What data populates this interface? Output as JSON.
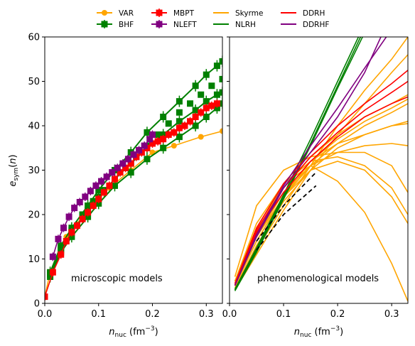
{
  "legend": [
    {
      "label": "VAR",
      "color": "#ffa500",
      "marker": "circle"
    },
    {
      "label": "BHF",
      "color": "#008000",
      "marker": "square"
    },
    {
      "label": "MBPT",
      "color": "#ff0000",
      "marker": "square"
    },
    {
      "label": "NLEFT",
      "color": "#800080",
      "marker": "square"
    },
    {
      "label": "Skyrme",
      "color": "#ffa500",
      "marker": "none"
    },
    {
      "label": "NLRH",
      "color": "#008000",
      "marker": "none"
    },
    {
      "label": "DDRH",
      "color": "#ff0000",
      "marker": "none"
    },
    {
      "label": "DDRHF",
      "color": "#800080",
      "marker": "none"
    }
  ],
  "chart_data": [
    {
      "type": "line",
      "panel": "left",
      "annotation": "microscopic models",
      "xlabel": "n_nuc (fm^-3)",
      "ylabel": "e_sym(n)",
      "xlim": [
        0,
        0.33
      ],
      "ylim": [
        0,
        60
      ],
      "xticks": [
        0.0,
        0.1,
        0.2,
        0.3
      ],
      "yticks": [
        0,
        10,
        20,
        30,
        40,
        50,
        60
      ],
      "series": [
        {
          "name": "VAR",
          "color": "#ffa500",
          "marker": "circle",
          "x": [
            0.0,
            0.01,
            0.04,
            0.08,
            0.12,
            0.16,
            0.2,
            0.24,
            0.29,
            0.33
          ],
          "y": [
            1.5,
            7,
            15,
            21,
            26,
            30,
            34,
            35.5,
            37.5,
            38.8
          ]
        },
        {
          "name": "BHF",
          "color": "#008000",
          "marker": "square",
          "bands": [
            {
              "x": [
                0.01,
                0.03,
                0.05,
                0.08,
                0.1,
                0.13,
                0.16,
                0.19,
                0.22,
                0.25,
                0.28,
                0.3,
                0.32,
                0.33
              ],
              "y": [
                6.5,
                12,
                16,
                21,
                24,
                28,
                31.5,
                35,
                38,
                41,
                43.5,
                45.5,
                47,
                47.5
              ]
            },
            {
              "x": [
                0.01,
                0.03,
                0.05,
                0.08,
                0.1,
                0.13,
                0.16,
                0.19,
                0.22,
                0.25,
                0.28,
                0.3,
                0.32,
                0.33
              ],
              "y": [
                7,
                13,
                17,
                22,
                25.5,
                30,
                34,
                38.5,
                42,
                45.5,
                49,
                51.5,
                53.5,
                54.5
              ]
            },
            {
              "x": [
                0.01,
                0.03,
                0.05,
                0.08,
                0.1,
                0.13,
                0.16,
                0.19,
                0.22,
                0.25,
                0.28,
                0.3,
                0.32,
                0.33
              ],
              "y": [
                6,
                11.5,
                15,
                19.5,
                22.5,
                26.5,
                29.5,
                32.5,
                35,
                37.5,
                40,
                42,
                44,
                45
              ]
            }
          ],
          "values_x": [
            0.01,
            0.03,
            0.05,
            0.07,
            0.09,
            0.11,
            0.13,
            0.15,
            0.17,
            0.19,
            0.21,
            0.23,
            0.25,
            0.27,
            0.29,
            0.31,
            0.33
          ],
          "values_y": [
            6.8,
            12.5,
            16.5,
            20,
            23,
            25.5,
            28,
            30.5,
            33,
            35.5,
            38,
            40.5,
            43,
            45,
            47,
            49,
            50.5
          ]
        },
        {
          "name": "MBPT",
          "color": "#ff0000",
          "marker": "square",
          "x": [
            0.0,
            0.015,
            0.03,
            0.04,
            0.05,
            0.06,
            0.07,
            0.08,
            0.09,
            0.1,
            0.11,
            0.12,
            0.13,
            0.14,
            0.15,
            0.16,
            0.17,
            0.18,
            0.19,
            0.2,
            0.21,
            0.22,
            0.23,
            0.24,
            0.25,
            0.26,
            0.27,
            0.28,
            0.29,
            0.3,
            0.31,
            0.32
          ],
          "y": [
            1.5,
            7,
            11,
            14,
            16,
            17.5,
            19,
            20.5,
            22,
            23.5,
            25,
            26.5,
            28,
            29.5,
            30.5,
            31.5,
            33,
            34,
            35,
            36,
            36.5,
            37,
            38,
            38.5,
            39.5,
            40,
            41,
            42,
            43,
            44,
            44.5,
            45
          ]
        },
        {
          "name": "NLEFT",
          "color": "#800080",
          "marker": "square",
          "x": [
            0.015,
            0.025,
            0.035,
            0.045,
            0.055,
            0.065,
            0.075,
            0.085,
            0.095,
            0.105,
            0.115,
            0.125,
            0.135,
            0.145,
            0.155,
            0.165,
            0.175,
            0.185,
            0.195,
            0.2
          ],
          "y": [
            10.5,
            14.5,
            17,
            19.5,
            21.5,
            22.8,
            24,
            25.3,
            26.5,
            27.5,
            28.5,
            29.5,
            30.5,
            31.5,
            32.5,
            33.5,
            34.5,
            35.5,
            37,
            38
          ]
        }
      ]
    },
    {
      "type": "line",
      "panel": "right",
      "annotation": "phenomenological models",
      "xlabel": "n_nuc (fm^-3)",
      "xlim": [
        0,
        0.33
      ],
      "ylim": [
        0,
        60
      ],
      "xticks": [
        0.0,
        0.1,
        0.2,
        0.3
      ],
      "series": [
        {
          "name": "Skyrme",
          "color": "#ffa500",
          "marker": "none",
          "curves": [
            {
              "x": [
                0.01,
                0.05,
                0.1,
                0.15,
                0.2,
                0.25,
                0.3,
                0.33
              ],
              "y": [
                6,
                22,
                30,
                33,
                34,
                34,
                31,
                25
              ]
            },
            {
              "x": [
                0.01,
                0.05,
                0.1,
                0.15,
                0.2,
                0.25,
                0.3,
                0.33
              ],
              "y": [
                5,
                18,
                27,
                32,
                36,
                38,
                40,
                41
              ]
            },
            {
              "x": [
                0.01,
                0.05,
                0.1,
                0.15,
                0.2,
                0.25,
                0.3,
                0.33
              ],
              "y": [
                4,
                15,
                24,
                31,
                36,
                40,
                43,
                45
              ]
            },
            {
              "x": [
                0.01,
                0.05,
                0.1,
                0.15,
                0.2,
                0.25,
                0.3,
                0.33
              ],
              "y": [
                3,
                12,
                22,
                31,
                40,
                48,
                55,
                60
              ]
            },
            {
              "x": [
                0.01,
                0.05,
                0.1,
                0.15,
                0.2,
                0.25,
                0.3,
                0.33
              ],
              "y": [
                4,
                14,
                24,
                32,
                37,
                41,
                44,
                46
              ]
            },
            {
              "x": [
                0.01,
                0.05,
                0.1,
                0.15,
                0.2,
                0.25,
                0.3,
                0.33
              ],
              "y": [
                5,
                17,
                27,
                32,
                33,
                31,
                26,
                20
              ]
            },
            {
              "x": [
                0.01,
                0.05,
                0.1,
                0.15,
                0.2,
                0.25,
                0.3,
                0.33
              ],
              "y": [
                4,
                14,
                24,
                30,
                32,
                30,
                24,
                18
              ]
            },
            {
              "x": [
                0.01,
                0.05,
                0.1,
                0.15,
                0.2,
                0.25,
                0.3,
                0.33
              ],
              "y": [
                5,
                16,
                27,
                31,
                27.5,
                20.5,
                9,
                0.5
              ]
            },
            {
              "x": [
                0.01,
                0.05,
                0.1,
                0.15,
                0.2,
                0.25,
                0.3,
                0.33
              ],
              "y": [
                4,
                15,
                25,
                31,
                34,
                35.5,
                36,
                35.5
              ]
            },
            {
              "x": [
                0.01,
                0.05,
                0.1,
                0.15,
                0.2,
                0.25,
                0.3,
                0.33
              ],
              "y": [
                3.5,
                13,
                23,
                30,
                35,
                38,
                40,
                40.5
              ]
            },
            {
              "x": [
                0.01,
                0.05,
                0.1,
                0.15,
                0.2,
                0.25,
                0.3,
                0.33
              ],
              "y": [
                4.5,
                15.5,
                26,
                33,
                38,
                42,
                45,
                47
              ]
            },
            {
              "x": [
                0.01,
                0.05,
                0.1,
                0.15,
                0.2,
                0.25,
                0.3,
                0.33
              ],
              "y": [
                3,
                11,
                21,
                30,
                38,
                45,
                52,
                56
              ]
            }
          ]
        },
        {
          "name": "NLRH",
          "color": "#008000",
          "marker": "none",
          "curves": [
            {
              "x": [
                0.01,
                0.05,
                0.1,
                0.15,
                0.2,
                0.25
              ],
              "y": [
                3,
                12,
                24,
                36,
                49,
                62
              ]
            },
            {
              "x": [
                0.01,
                0.05,
                0.1,
                0.15,
                0.2,
                0.25
              ],
              "y": [
                3.2,
                12.5,
                24.5,
                37,
                50,
                63
              ]
            },
            {
              "x": [
                0.01,
                0.05,
                0.1,
                0.15,
                0.2,
                0.25
              ],
              "y": [
                2.8,
                11.5,
                23.5,
                35.5,
                48.5,
                61
              ]
            }
          ]
        },
        {
          "name": "DDRH",
          "color": "#ff0000",
          "marker": "none",
          "curves": [
            {
              "x": [
                0.01,
                0.05,
                0.1,
                0.15,
                0.2,
                0.25,
                0.3,
                0.33
              ],
              "y": [
                4,
                16,
                25,
                32,
                37.5,
                42,
                45,
                46.5
              ]
            },
            {
              "x": [
                0.01,
                0.05,
                0.1,
                0.15,
                0.2,
                0.25,
                0.3,
                0.33
              ],
              "y": [
                4.2,
                16.5,
                26,
                33,
                38.5,
                43.5,
                47.5,
                50
              ]
            },
            {
              "x": [
                0.01,
                0.05,
                0.1,
                0.15,
                0.2,
                0.25,
                0.3,
                0.33
              ],
              "y": [
                4.5,
                17,
                27,
                34,
                40,
                45,
                49.5,
                52.5
              ]
            }
          ]
        },
        {
          "name": "DDRHF",
          "color": "#800080",
          "marker": "none",
          "curves": [
            {
              "x": [
                0.01,
                0.05,
                0.1,
                0.15,
                0.2,
                0.25,
                0.28
              ],
              "y": [
                4,
                15,
                26,
                34,
                42,
                52,
                60
              ]
            },
            {
              "x": [
                0.01,
                0.05,
                0.1,
                0.15,
                0.2,
                0.25,
                0.29
              ],
              "y": [
                4,
                15.5,
                26.5,
                35.5,
                44,
                53,
                60
              ]
            }
          ]
        },
        {
          "name": "",
          "color": "#000000",
          "marker": "none",
          "dashed": true,
          "curves": [
            {
              "x": [
                0.05,
                0.1,
                0.16
              ],
              "y": [
                14,
                22,
                29.5
              ]
            },
            {
              "x": [
                0.05,
                0.1,
                0.16
              ],
              "y": [
                12,
                20,
                26.5
              ]
            }
          ]
        }
      ]
    }
  ]
}
